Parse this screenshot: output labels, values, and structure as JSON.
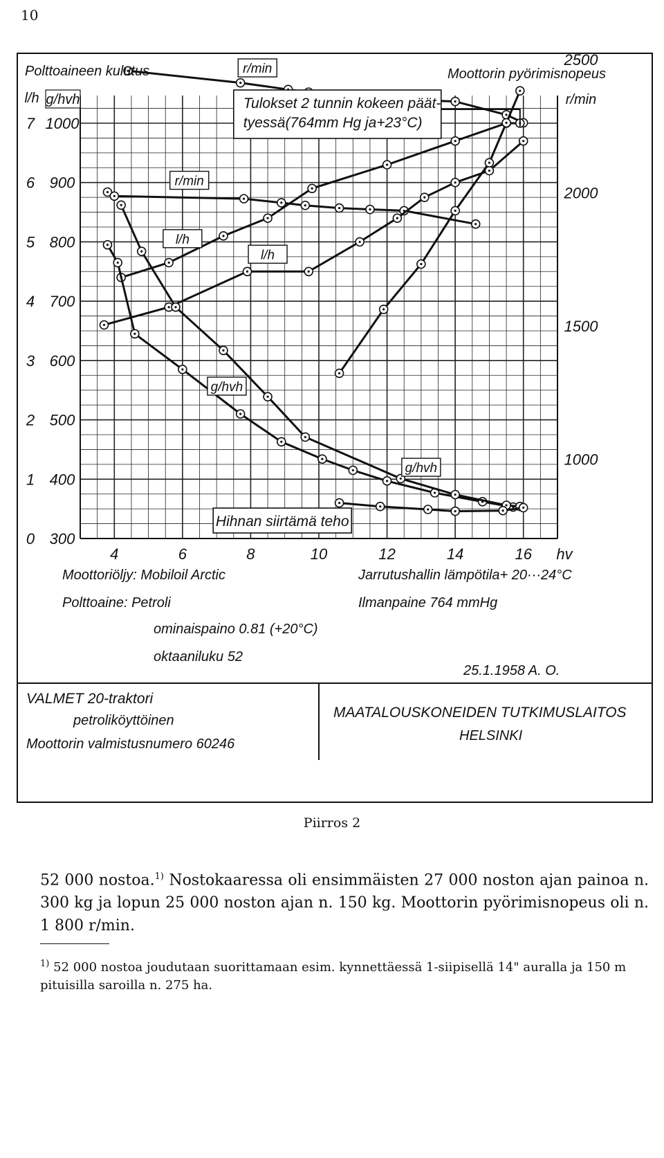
{
  "page": {
    "number": "10"
  },
  "chart_data": {
    "type": "line",
    "title": "Tulokset 2 tunnin kokeen päät-tyessä(764mm Hg ja+23°C)",
    "xlabel": "hv",
    "x_axis_title": "Hihnan siirtämä teho",
    "left_axis_title": "Polttoaineen kulutus",
    "right_axis_title": "Moottorin pyörimisnopeus",
    "left_axis_unit_lh": "l/h",
    "left_axis_unit_ghvh": "g/hvh",
    "right_axis_unit": "r/min",
    "xlim": [
      3,
      17
    ],
    "xticks": [
      4,
      6,
      8,
      10,
      12,
      14,
      16
    ],
    "x_tick_labels": [
      "4",
      "6",
      "8",
      "10",
      "12",
      "14",
      "16"
    ],
    "ylim_lh": [
      0,
      7
    ],
    "yticks_lh": [
      "0",
      "1",
      "2",
      "3",
      "4",
      "5",
      "6",
      "7"
    ],
    "ylim_ghvh": [
      300,
      1000
    ],
    "yticks_ghvh": [
      "300",
      "400",
      "500",
      "600",
      "700",
      "800",
      "900",
      "1000"
    ],
    "ylim_rpm": [
      700,
      2700
    ],
    "yticks_rpm": [
      "1000",
      "1500",
      "2000",
      "2500"
    ],
    "grid": true,
    "series": [
      {
        "name": "r/min",
        "axis": "rpm",
        "label": "r/min",
        "points": [
          [
            4.4,
            2455
          ],
          [
            7.7,
            2410
          ],
          [
            9.1,
            2385
          ],
          [
            9.7,
            2375
          ],
          [
            12.0,
            2350
          ],
          [
            14.0,
            2340
          ],
          [
            15.5,
            2290
          ],
          [
            16.0,
            2260
          ]
        ]
      },
      {
        "name": "l/h",
        "axis": "lh",
        "label": "l/h",
        "points": [
          [
            4.2,
            4.4
          ],
          [
            5.6,
            4.65
          ],
          [
            7.2,
            5.1
          ],
          [
            8.5,
            5.4
          ],
          [
            9.8,
            5.9
          ],
          [
            12.0,
            6.3
          ],
          [
            14.0,
            6.7
          ],
          [
            15.5,
            7.0
          ],
          [
            15.9,
            7.0
          ]
        ]
      },
      {
        "name": "r/min",
        "axis": "rpm",
        "label": "r/min",
        "points": [
          [
            3.8,
            2000
          ],
          [
            4.0,
            1985
          ],
          [
            7.8,
            1975
          ],
          [
            8.9,
            1960
          ],
          [
            9.6,
            1950
          ],
          [
            10.6,
            1940
          ],
          [
            11.5,
            1935
          ],
          [
            12.5,
            1930
          ],
          [
            14.6,
            1880
          ]
        ]
      },
      {
        "name": "l/h",
        "axis": "lh",
        "label": "l/h",
        "points": [
          [
            3.7,
            3.6
          ],
          [
            5.6,
            3.9
          ],
          [
            7.9,
            4.5
          ],
          [
            9.7,
            4.5
          ],
          [
            11.2,
            5.0
          ],
          [
            12.3,
            5.4
          ],
          [
            13.1,
            5.75
          ],
          [
            14.0,
            6.0
          ],
          [
            15.0,
            6.2
          ],
          [
            16.0,
            6.7
          ]
        ]
      },
      {
        "name": "g/hvh",
        "axis": "ghvh",
        "label": "g/hvh",
        "points": [
          [
            3.8,
            795
          ],
          [
            4.1,
            765
          ],
          [
            4.6,
            645
          ],
          [
            6.0,
            585
          ],
          [
            7.7,
            510
          ],
          [
            8.9,
            463
          ],
          [
            10.1,
            434
          ],
          [
            11.0,
            415
          ],
          [
            12.0,
            397
          ],
          [
            13.4,
            377
          ],
          [
            14.8,
            362
          ],
          [
            15.7,
            353
          ]
        ]
      },
      {
        "name": "g/hvh",
        "axis": "ghvh",
        "label": "g/hvh",
        "points": [
          [
            4.2,
            862
          ],
          [
            4.8,
            784
          ],
          [
            5.8,
            690
          ],
          [
            7.2,
            617
          ],
          [
            8.5,
            539
          ],
          [
            9.6,
            471
          ],
          [
            12.4,
            401
          ],
          [
            14.0,
            374
          ],
          [
            15.5,
            356
          ],
          [
            15.9,
            354
          ]
        ]
      },
      {
        "name": "",
        "axis": "ghvh",
        "label": "",
        "points": [
          [
            10.6,
            360
          ],
          [
            11.8,
            354
          ],
          [
            13.2,
            349
          ],
          [
            14.0,
            346
          ],
          [
            15.4,
            347
          ],
          [
            16.0,
            352
          ]
        ]
      },
      {
        "name": "",
        "axis": "rpm",
        "label": "",
        "points": [
          [
            10.6,
            1320
          ],
          [
            11.9,
            1560
          ],
          [
            13.0,
            1730
          ],
          [
            14.0,
            1930
          ],
          [
            15.0,
            2110
          ],
          [
            15.5,
            2260
          ],
          [
            15.9,
            2380
          ]
        ]
      }
    ]
  },
  "notes": {
    "motor_oil": "Moottoriöljy: Mobiloil Arctic",
    "fuel": "Polttoaine: Petroli",
    "density": "ominaispaino  0.81 (+20°C)",
    "octane": "oktaaniluku  52",
    "brake_temp": "Jarrutushallin lämpötila+ 20···24°C",
    "pressure": "Ilmanpaine  764 mmHg",
    "date_sign": "25.1.1958  A. O."
  },
  "info_box": {
    "model": "VALMET  20-traktori",
    "type": "petroliköyttöinen",
    "serial": "Moottorin valmistusnumero    60246",
    "institute": "MAATALOUSKONEIDEN  TUTKIMUSLAITOS",
    "city": "HELSINKI"
  },
  "caption": "Piirros 2",
  "body": {
    "text_pre": "52 000 nostoa.",
    "footnote_marker": "1)",
    "text_post": " Nostokaaressa oli ensimmäisten 27 000 noston ajan painoa n. 300 kg ja lopun 25 000 noston ajan n. 150 kg. Moottorin pyörimisnopeus oli n. 1 800 r/min."
  },
  "footnote": {
    "marker": "1)",
    "text": " 52 000 nostoa joudutaan suorittamaan esim. kynnettäessä 1-siipisellä 14\" auralla ja 150 m pituisilla saroilla n. 275 ha."
  }
}
